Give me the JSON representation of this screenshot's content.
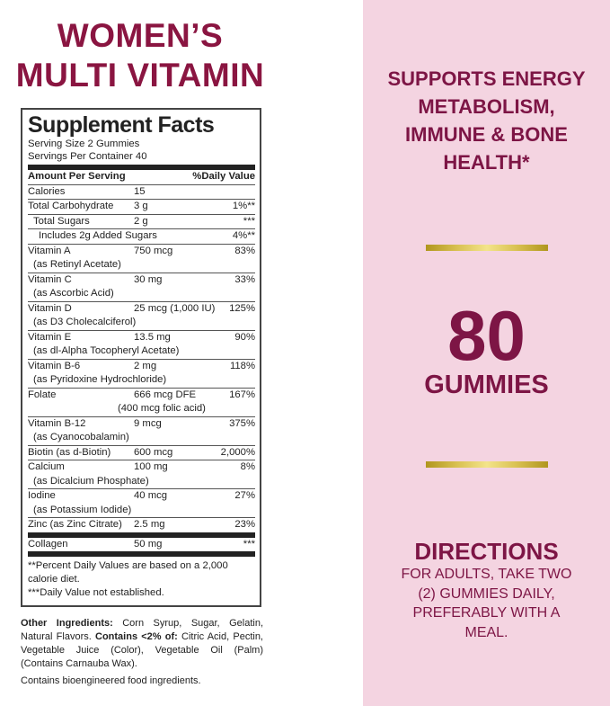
{
  "title": {
    "line1": "WOMEN’S",
    "line2": "MULTI VITAMIN"
  },
  "facts": {
    "heading": "Supplement Facts",
    "serving_size": "Serving Size 2 Gummies",
    "servings_per_container": "Servings Per Container 40",
    "col_amount": "Amount Per Serving",
    "col_dv": "%Daily Value",
    "rows": [
      {
        "name": "Calories",
        "amount": "15",
        "dv": ""
      },
      {
        "name": "Total Carbohydrate",
        "amount": "3 g",
        "dv": "1%**"
      },
      {
        "name": "Total Sugars",
        "amount": "2 g",
        "dv": "***"
      },
      {
        "name": "Includes 2g Added Sugars",
        "amount": "",
        "dv": "4%**"
      },
      {
        "name": "Vitamin A",
        "amount": "750 mcg",
        "dv": "83%",
        "sub": "(as Retinyl Acetate)"
      },
      {
        "name": "Vitamin C",
        "amount": "30 mg",
        "dv": "33%",
        "sub": "(as Ascorbic Acid)"
      },
      {
        "name": "Vitamin D",
        "amount": "25 mcg (1,000 IU)",
        "dv": "125%",
        "sub": "(as D3 Cholecalciferol)"
      },
      {
        "name": "Vitamin E",
        "amount": "13.5 mg",
        "dv": "90%",
        "sub": "(as dl-Alpha Tocopheryl Acetate)"
      },
      {
        "name": "Vitamin B-6",
        "amount": "2 mg",
        "dv": "118%",
        "sub": "(as Pyridoxine Hydrochloride)"
      },
      {
        "name": "Folate",
        "amount": "666 mcg DFE",
        "dv": "167%",
        "sub": "(400 mcg folic acid)"
      },
      {
        "name": "Vitamin B-12",
        "amount": "9 mcg",
        "dv": "375%",
        "sub": "(as Cyanocobalamin)"
      },
      {
        "name": "Biotin (as d-Biotin)",
        "amount": "600 mcg",
        "dv": "2,000%"
      },
      {
        "name": "Calcium",
        "amount": "100 mg",
        "dv": "8%",
        "sub": "(as Dicalcium Phosphate)"
      },
      {
        "name": "Iodine",
        "amount": "40 mcg",
        "dv": "27%",
        "sub": "(as Potassium Iodide)"
      },
      {
        "name": "Zinc (as Zinc Citrate)",
        "amount": "2.5 mg",
        "dv": "23%"
      },
      {
        "name": "Collagen",
        "amount": "50 mg",
        "dv": "***"
      }
    ],
    "footnote1": "**Percent Daily Values are based on a 2,000 calorie diet.",
    "footnote2": "***Daily Value not established."
  },
  "other": {
    "label": "Other Ingredients:",
    "text1": " Corn Syrup, Sugar, Gelatin, Natural Flavors. ",
    "contains_label": "Contains <2% of:",
    "text2": " Citric Acid, Pectin, Vegetable Juice (Color), Vegetable Oil (Palm) (Contains Carnauba Wax).",
    "bioengineered": "Contains bioengineered food ingredients."
  },
  "panel": {
    "claim": "SUPPORTS ENERGY METABOLISM, IMMUNE & BONE HEALTH*",
    "count": "80",
    "unit": "GUMMIES",
    "directions_title": "DIRECTIONS",
    "directions_text": "FOR ADULTS, TAKE TWO (2) GUMMIES DAILY, PREFERABLY WITH A MEAL."
  },
  "colors": {
    "brand": "#8a1541",
    "panel_bg": "#f4d4e1",
    "gold": "#d8c050"
  }
}
